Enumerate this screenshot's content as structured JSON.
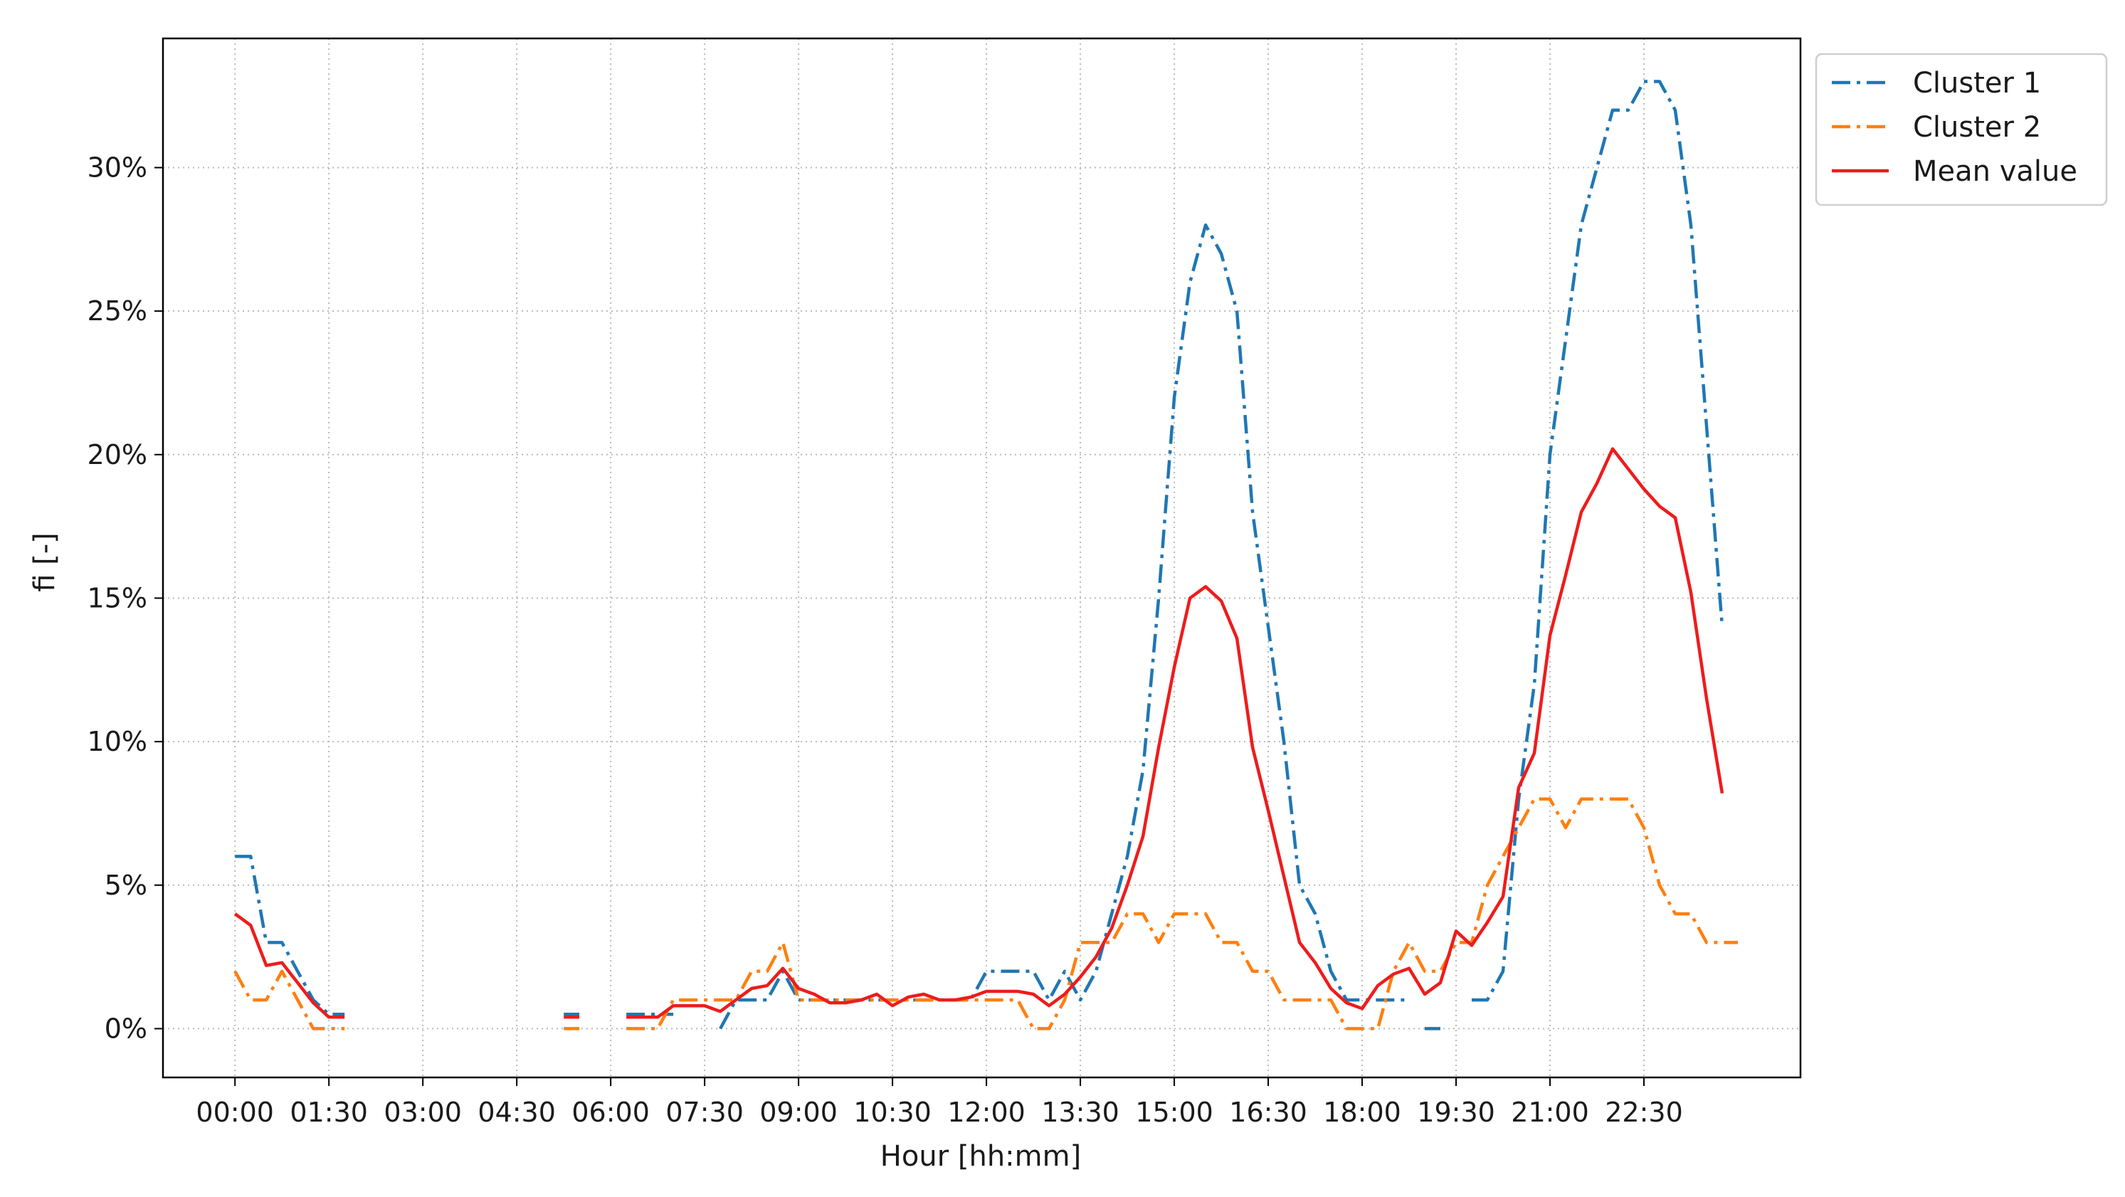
{
  "chart_data": {
    "type": "line",
    "xlabel": "Hour [hh:mm]",
    "ylabel": "fi [-]",
    "x_step_minutes": 15,
    "x_ticks": [
      "00:00",
      "01:30",
      "03:00",
      "04:30",
      "06:00",
      "07:30",
      "09:00",
      "10:30",
      "12:00",
      "13:30",
      "15:00",
      "16:30",
      "18:00",
      "19:30",
      "21:00",
      "22:30"
    ],
    "y_ticks": [
      "0%",
      "5%",
      "10%",
      "15%",
      "20%",
      "25%",
      "30%"
    ],
    "y_tick_values": [
      0,
      5,
      10,
      15,
      20,
      25,
      30
    ],
    "ylim": [
      -1.7,
      34.5
    ],
    "xlim_hours": [
      -1.15,
      25.0
    ],
    "grid": true,
    "legend": "top-right outside plot",
    "series": [
      {
        "name": "Cluster 1",
        "color": "#1f77b4",
        "style": "dashdot",
        "points": [
          [
            "00:00",
            6
          ],
          [
            "00:15",
            6
          ],
          [
            "00:30",
            3
          ],
          [
            "00:45",
            3
          ],
          [
            "01:00",
            2
          ],
          [
            "01:15",
            1
          ],
          [
            "01:30",
            0.5
          ],
          [
            "01:45",
            0.5
          ],
          null,
          [
            "05:15",
            0.5
          ],
          [
            "05:30",
            0.5
          ],
          null,
          [
            "06:15",
            0.5
          ],
          [
            "06:30",
            0.5
          ],
          [
            "06:45",
            0.5
          ],
          [
            "07:00",
            0.5
          ],
          null,
          [
            "07:45",
            0
          ],
          [
            "08:00",
            1
          ],
          [
            "08:15",
            1
          ],
          [
            "08:30",
            1
          ],
          [
            "08:45",
            2
          ],
          [
            "09:00",
            1
          ],
          [
            "09:15",
            1
          ],
          [
            "09:30",
            1
          ],
          [
            "09:45",
            1
          ],
          [
            "10:00",
            1
          ],
          [
            "10:15",
            1
          ],
          [
            "10:30",
            1
          ],
          [
            "10:45",
            1
          ],
          [
            "11:00",
            1
          ],
          [
            "11:15",
            1
          ],
          [
            "11:30",
            1
          ],
          [
            "11:45",
            1
          ],
          [
            "12:00",
            2
          ],
          [
            "12:15",
            2
          ],
          [
            "12:30",
            2
          ],
          [
            "12:45",
            2
          ],
          [
            "13:00",
            1
          ],
          [
            "13:15",
            2
          ],
          [
            "13:30",
            1
          ],
          [
            "13:45",
            2
          ],
          [
            "14:00",
            4
          ],
          [
            "14:15",
            6
          ],
          [
            "14:30",
            9
          ],
          [
            "14:45",
            15
          ],
          [
            "15:00",
            22
          ],
          [
            "15:15",
            26
          ],
          [
            "15:30",
            28
          ],
          [
            "15:45",
            27
          ],
          [
            "16:00",
            25
          ],
          [
            "16:15",
            18
          ],
          [
            "16:30",
            14
          ],
          [
            "16:45",
            10
          ],
          [
            "17:00",
            5
          ],
          [
            "17:15",
            4
          ],
          [
            "17:30",
            2
          ],
          [
            "17:45",
            1
          ],
          [
            "18:00",
            1
          ],
          [
            "18:15",
            1
          ],
          [
            "18:30",
            1
          ],
          [
            "18:45",
            1
          ],
          null,
          [
            "19:00",
            0
          ],
          [
            "19:15",
            0
          ],
          null,
          [
            "19:45",
            1
          ],
          [
            "20:00",
            1
          ],
          [
            "20:15",
            2
          ],
          [
            "20:30",
            8
          ],
          [
            "20:45",
            12
          ],
          [
            "21:00",
            20
          ],
          [
            "21:15",
            24
          ],
          [
            "21:30",
            28
          ],
          [
            "21:45",
            30
          ],
          [
            "22:00",
            32
          ],
          [
            "22:15",
            32
          ],
          [
            "22:30",
            33
          ],
          [
            "22:45",
            33
          ],
          [
            "23:00",
            32
          ],
          [
            "23:15",
            28
          ],
          [
            "23:30",
            21
          ],
          [
            "23:45",
            14
          ]
        ]
      },
      {
        "name": "Cluster 2",
        "color": "#ff7f0e",
        "style": "dashdot",
        "points": [
          [
            "00:00",
            2
          ],
          [
            "00:15",
            1
          ],
          [
            "00:30",
            1
          ],
          [
            "00:45",
            2
          ],
          [
            "01:00",
            1
          ],
          [
            "01:15",
            0
          ],
          [
            "01:30",
            0
          ],
          [
            "01:45",
            0
          ],
          null,
          [
            "05:15",
            0
          ],
          [
            "05:30",
            0
          ],
          null,
          [
            "06:15",
            0
          ],
          [
            "06:30",
            0
          ],
          [
            "06:45",
            0
          ],
          [
            "07:00",
            1
          ],
          [
            "07:15",
            1
          ],
          [
            "07:30",
            1
          ],
          [
            "07:45",
            1
          ],
          [
            "08:00",
            1
          ],
          [
            "08:15",
            2
          ],
          [
            "08:30",
            2
          ],
          [
            "08:45",
            3
          ],
          [
            "09:00",
            1
          ],
          [
            "09:15",
            1
          ],
          [
            "09:30",
            1
          ],
          [
            "09:45",
            1
          ],
          [
            "10:00",
            1
          ],
          [
            "10:15",
            1
          ],
          [
            "10:30",
            1
          ],
          [
            "10:45",
            1
          ],
          [
            "11:00",
            1
          ],
          [
            "11:15",
            1
          ],
          [
            "11:30",
            1
          ],
          [
            "11:45",
            1
          ],
          [
            "12:00",
            1
          ],
          [
            "12:15",
            1
          ],
          [
            "12:30",
            1
          ],
          [
            "12:45",
            0
          ],
          [
            "13:00",
            0
          ],
          [
            "13:15",
            1
          ],
          [
            "13:30",
            3
          ],
          [
            "13:45",
            3
          ],
          [
            "14:00",
            3
          ],
          [
            "14:15",
            4
          ],
          [
            "14:30",
            4
          ],
          [
            "14:45",
            3
          ],
          [
            "15:00",
            4
          ],
          [
            "15:15",
            4
          ],
          [
            "15:30",
            4
          ],
          [
            "15:45",
            3
          ],
          [
            "16:00",
            3
          ],
          [
            "16:15",
            2
          ],
          [
            "16:30",
            2
          ],
          [
            "16:45",
            1
          ],
          [
            "17:00",
            1
          ],
          [
            "17:15",
            1
          ],
          [
            "17:30",
            1
          ],
          [
            "17:45",
            0
          ],
          [
            "18:00",
            0
          ],
          [
            "18:15",
            0
          ],
          [
            "18:30",
            2
          ],
          [
            "18:45",
            3
          ],
          [
            "19:00",
            2
          ],
          [
            "19:15",
            2
          ],
          [
            "19:30",
            3
          ],
          [
            "19:45",
            3
          ],
          [
            "20:00",
            5
          ],
          [
            "20:15",
            6
          ],
          [
            "20:30",
            7
          ],
          [
            "20:45",
            8
          ],
          [
            "21:00",
            8
          ],
          [
            "21:15",
            7
          ],
          [
            "21:30",
            8
          ],
          [
            "21:45",
            8
          ],
          [
            "22:00",
            8
          ],
          [
            "22:15",
            8
          ],
          [
            "22:30",
            7
          ],
          [
            "22:45",
            5
          ],
          [
            "23:00",
            4
          ],
          [
            "23:15",
            4
          ],
          [
            "23:30",
            3
          ],
          [
            "23:45",
            3
          ],
          [
            "24:00",
            3
          ]
        ]
      },
      {
        "name": "Mean value",
        "color": "#ee1c1c",
        "style": "solid",
        "points": [
          [
            "00:00",
            4
          ],
          [
            "00:15",
            3.6
          ],
          [
            "00:30",
            2.2
          ],
          [
            "00:45",
            2.3
          ],
          [
            "01:00",
            1.6
          ],
          [
            "01:15",
            0.9
          ],
          [
            "01:30",
            0.4
          ],
          [
            "01:45",
            0.4
          ],
          null,
          [
            "05:15",
            0.4
          ],
          [
            "05:30",
            0.4
          ],
          null,
          [
            "06:15",
            0.4
          ],
          [
            "06:30",
            0.4
          ],
          [
            "06:45",
            0.4
          ],
          [
            "07:00",
            0.8
          ],
          [
            "07:15",
            0.8
          ],
          [
            "07:30",
            0.8
          ],
          [
            "07:45",
            0.6
          ],
          [
            "08:00",
            1
          ],
          [
            "08:15",
            1.4
          ],
          [
            "08:30",
            1.5
          ],
          [
            "08:45",
            2.1
          ],
          [
            "09:00",
            1.4
          ],
          [
            "09:15",
            1.2
          ],
          [
            "09:30",
            0.9
          ],
          [
            "09:45",
            0.9
          ],
          [
            "10:00",
            1
          ],
          [
            "10:15",
            1.2
          ],
          [
            "10:30",
            0.8
          ],
          [
            "10:45",
            1.1
          ],
          [
            "11:00",
            1.2
          ],
          [
            "11:15",
            1
          ],
          [
            "11:30",
            1
          ],
          [
            "11:45",
            1.1
          ],
          [
            "12:00",
            1.3
          ],
          [
            "12:15",
            1.3
          ],
          [
            "12:30",
            1.3
          ],
          [
            "12:45",
            1.2
          ],
          [
            "13:00",
            0.8
          ],
          [
            "13:15",
            1.2
          ],
          [
            "13:30",
            1.8
          ],
          [
            "13:45",
            2.5
          ],
          [
            "14:00",
            3.5
          ],
          [
            "14:15",
            5
          ],
          [
            "14:30",
            6.7
          ],
          [
            "14:45",
            9.8
          ],
          [
            "15:00",
            12.6
          ],
          [
            "15:15",
            15
          ],
          [
            "15:30",
            15.4
          ],
          [
            "15:45",
            14.9
          ],
          [
            "16:00",
            13.6
          ],
          [
            "16:15",
            9.8
          ],
          [
            "16:30",
            7.6
          ],
          [
            "16:45",
            5.3
          ],
          [
            "17:00",
            3
          ],
          [
            "17:15",
            2.3
          ],
          [
            "17:30",
            1.4
          ],
          [
            "17:45",
            0.9
          ],
          [
            "18:00",
            0.7
          ],
          [
            "18:15",
            1.5
          ],
          [
            "18:30",
            1.9
          ],
          [
            "18:45",
            2.1
          ],
          [
            "19:00",
            1.2
          ],
          [
            "19:15",
            1.6
          ],
          [
            "19:30",
            3.4
          ],
          [
            "19:45",
            2.9
          ],
          [
            "20:00",
            3.7
          ],
          [
            "20:15",
            4.6
          ],
          [
            "20:30",
            8.4
          ],
          [
            "20:45",
            9.6
          ],
          [
            "21:00",
            13.7
          ],
          [
            "21:15",
            15.8
          ],
          [
            "21:30",
            18
          ],
          [
            "21:45",
            19
          ],
          [
            "22:00",
            20.2
          ],
          [
            "22:15",
            19.5
          ],
          [
            "22:30",
            18.8
          ],
          [
            "22:45",
            18.2
          ],
          [
            "23:00",
            17.8
          ],
          [
            "23:15",
            15.2
          ],
          [
            "23:30",
            11.5
          ],
          [
            "23:45",
            8.2
          ]
        ]
      }
    ]
  }
}
